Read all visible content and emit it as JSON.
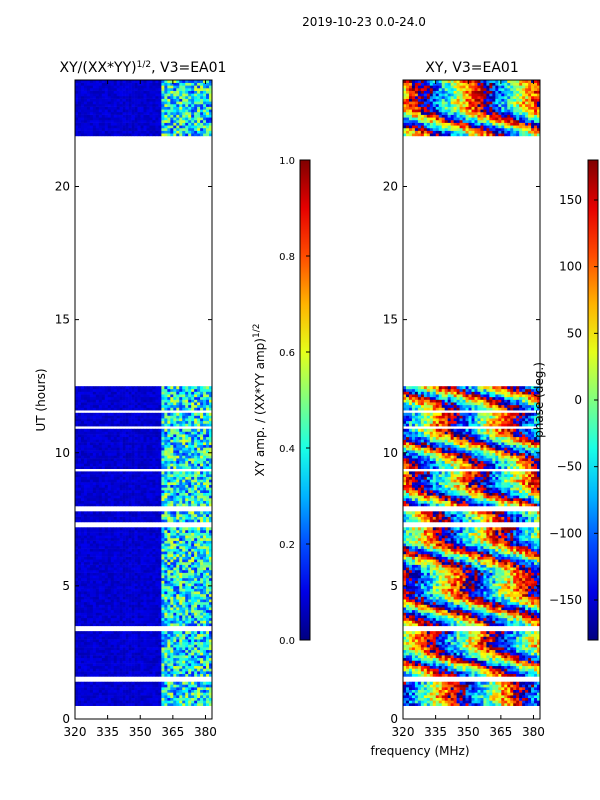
{
  "chart_data": {
    "suptitle": "2019-10-23 0.0-24.0",
    "shared_xlabel": "frequency (MHz)",
    "panels": [
      {
        "type": "heatmap",
        "title_prefix": "XY/(XX*YY)",
        "title_sup": "1/2",
        "title_suffix": ", V3=EA01",
        "ylabel": "UT (hours)",
        "xlim": [
          320,
          383
        ],
        "ylim": [
          0,
          24
        ],
        "xticks": [
          320,
          335,
          350,
          365,
          380
        ],
        "yticks": [
          0,
          5,
          10,
          15,
          20
        ],
        "data_ranges_hours": [
          [
            0.5,
            12.5
          ],
          [
            21.9,
            24
          ]
        ],
        "colorbar": {
          "label_prefix": "XY amp. / (XX*YY amp)",
          "label_sup": "1/2",
          "range": [
            0,
            1
          ],
          "ticks": [
            "0.0",
            "0.2",
            "0.4",
            "0.6",
            "0.8",
            "1.0"
          ],
          "tick_values": [
            0,
            0.2,
            0.4,
            0.6,
            0.8,
            1.0
          ]
        }
      },
      {
        "type": "heatmap",
        "title_prefix": "XY, V3=EA01",
        "title_sup": "",
        "title_suffix": "",
        "ylabel": "",
        "xlim": [
          320,
          383
        ],
        "ylim": [
          0,
          24
        ],
        "xticks": [
          320,
          335,
          350,
          365,
          380
        ],
        "yticks": [
          0,
          5,
          10,
          15,
          20
        ],
        "data_ranges_hours": [
          [
            0.5,
            12.5
          ],
          [
            21.9,
            24
          ]
        ],
        "colorbar": {
          "label_prefix": "phase (deg.)",
          "label_sup": "",
          "range": [
            -180,
            180
          ],
          "ticks": [
            "−150",
            "−100",
            "−50",
            "0",
            "50",
            "100",
            "150"
          ],
          "tick_values": [
            -150,
            -100,
            -50,
            0,
            50,
            100,
            150
          ]
        }
      }
    ]
  },
  "colors": {
    "jet_low": "#00007f",
    "jet_high": "#7f0000",
    "background": "#ffffff"
  }
}
